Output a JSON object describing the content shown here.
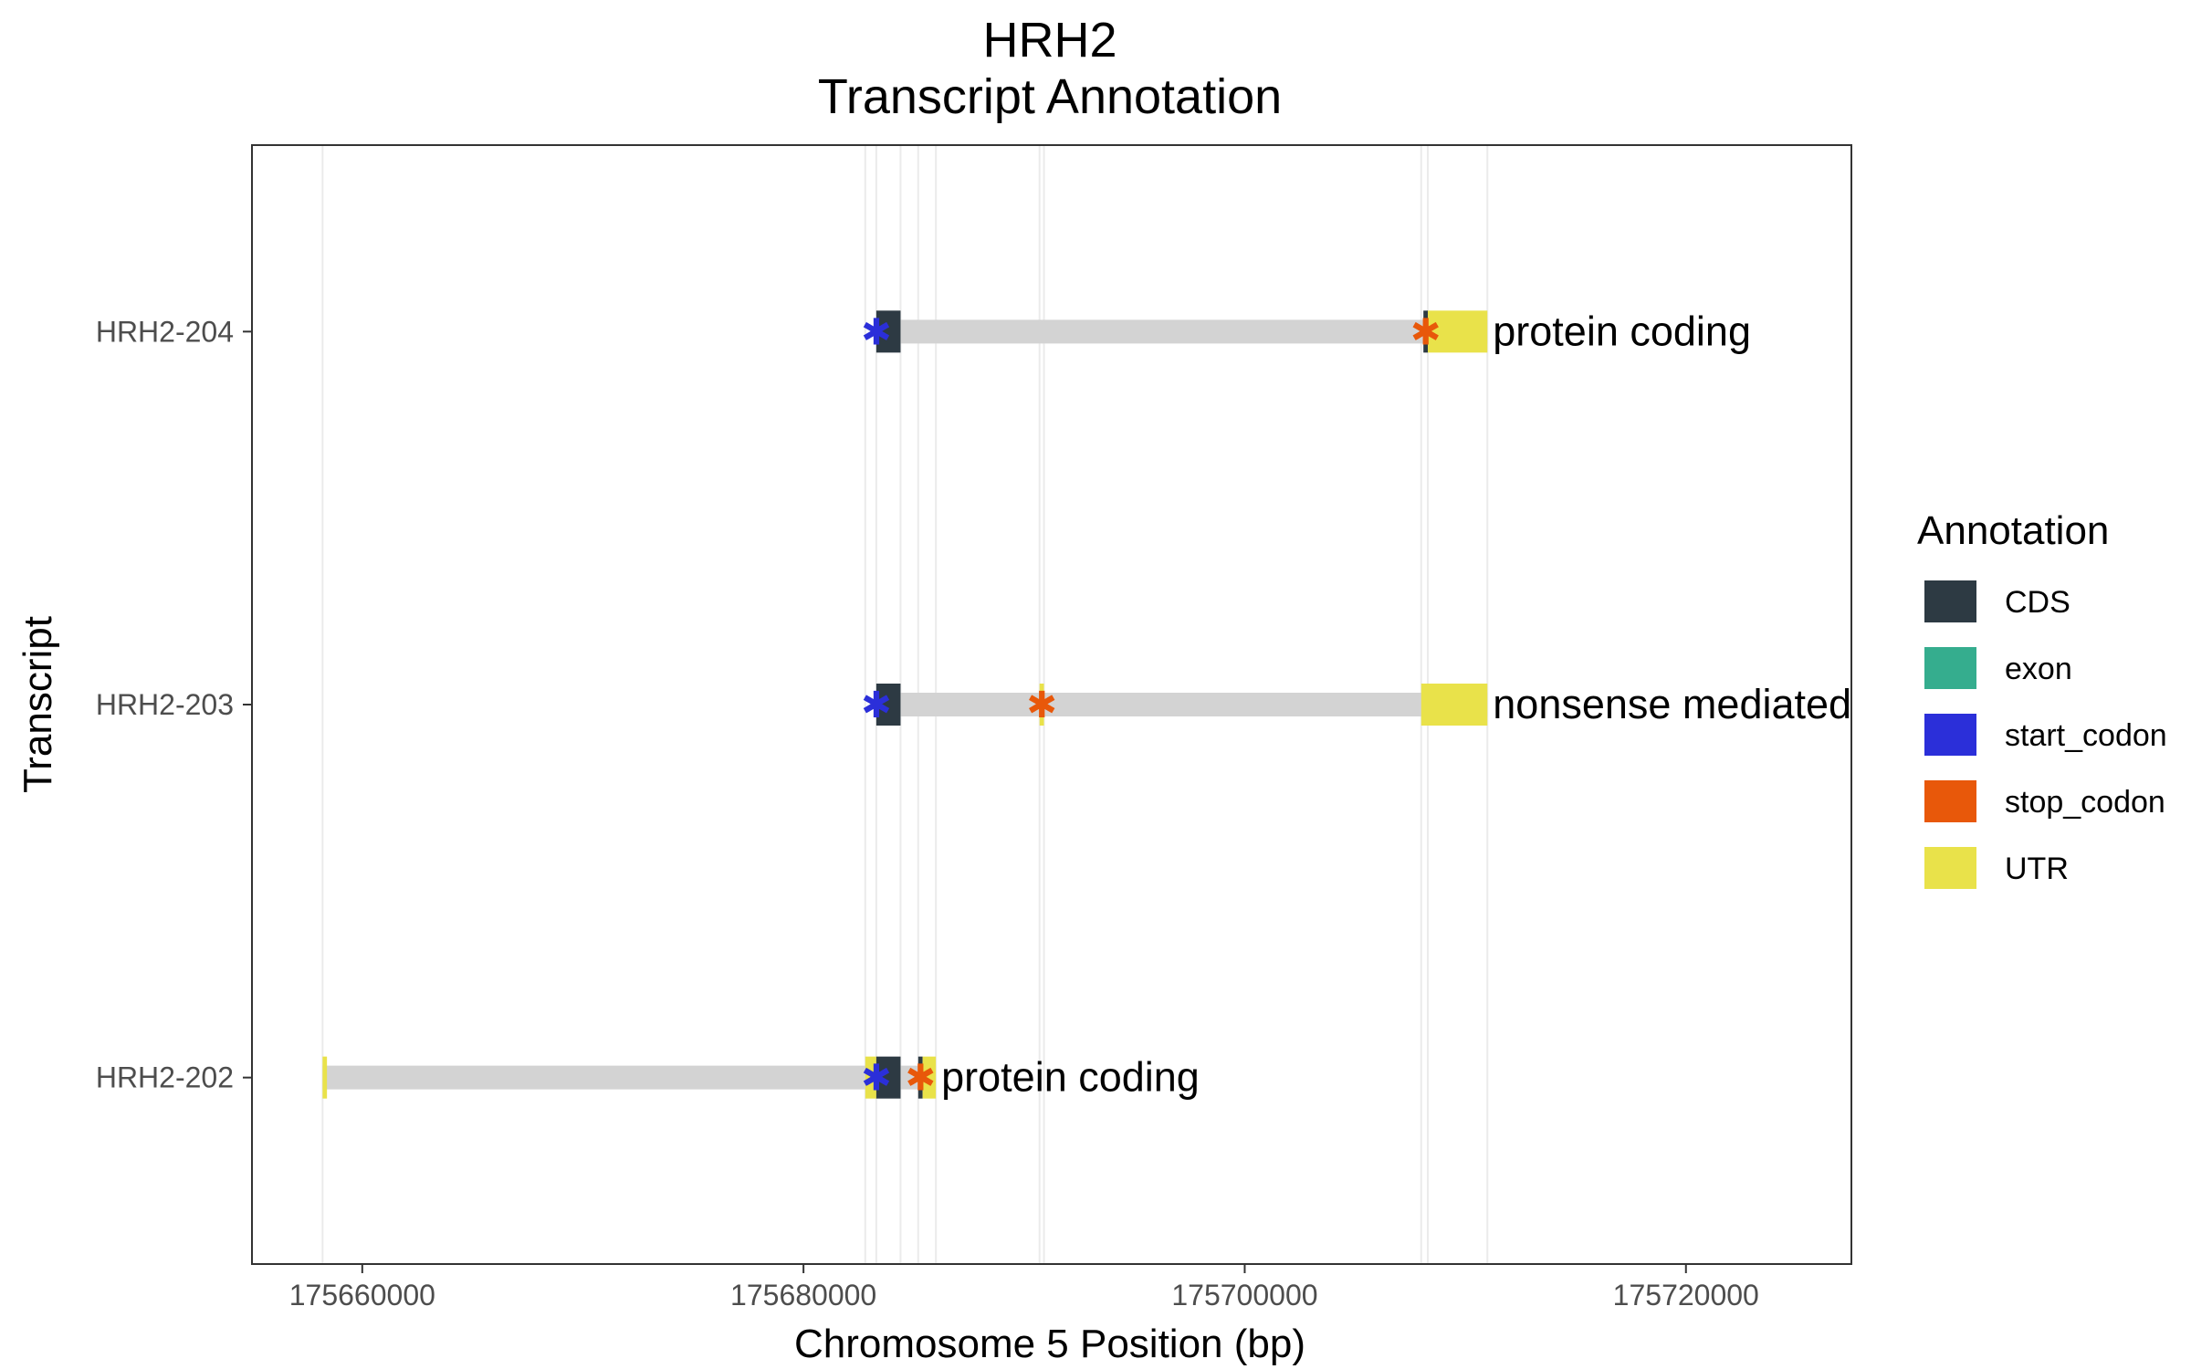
{
  "chart_data": {
    "type": "gene-track",
    "title": "HRH2",
    "subtitle": "Transcript Annotation",
    "xlabel": "Chromosome 5 Position (bp)",
    "ylabel": "Transcript",
    "xlim": [
      175655000,
      175727500
    ],
    "x_ticks": [
      175660000,
      175680000,
      175700000,
      175720000
    ],
    "x_tick_labels": [
      "175660000",
      "175680000",
      "175700000",
      "175720000"
    ],
    "grid": true,
    "legend": {
      "title": "Annotation",
      "placement": "right",
      "entries": [
        {
          "label": "CDS",
          "color": "#2d3a43"
        },
        {
          "label": "exon",
          "color": "#35ad8e"
        },
        {
          "label": "start_codon",
          "color": "#2b2fd9"
        },
        {
          "label": "stop_codon",
          "color": "#e8580a"
        },
        {
          "label": "UTR",
          "color": "#e9e24a"
        }
      ]
    },
    "intron_color": "#d3d3d3",
    "transcripts": [
      {
        "name": "HRH2-204",
        "biotype": "protein coding",
        "start": 175683300,
        "end": 175711000,
        "features": [
          {
            "type": "CDS",
            "start": 175683300,
            "end": 175684400
          },
          {
            "type": "CDS",
            "start": 175708100,
            "end": 175708300
          },
          {
            "type": "UTR",
            "start": 175708300,
            "end": 175711000
          }
        ],
        "start_codon": 175683300,
        "stop_codon": 175708200
      },
      {
        "name": "HRH2-203",
        "biotype": "nonsense mediated decay",
        "start": 175683300,
        "end": 175711000,
        "features": [
          {
            "type": "CDS",
            "start": 175683300,
            "end": 175684400
          },
          {
            "type": "UTR",
            "start": 175690700,
            "end": 175690900
          },
          {
            "type": "UTR",
            "start": 175708000,
            "end": 175711000
          }
        ],
        "start_codon": 175683300,
        "stop_codon": 175690800
      },
      {
        "name": "HRH2-202",
        "biotype": "protein coding",
        "start": 175658200,
        "end": 175686000,
        "features": [
          {
            "type": "UTR",
            "start": 175658200,
            "end": 175658400
          },
          {
            "type": "UTR",
            "start": 175682800,
            "end": 175683300
          },
          {
            "type": "CDS",
            "start": 175683300,
            "end": 175684400
          },
          {
            "type": "CDS",
            "start": 175685200,
            "end": 175685400
          },
          {
            "type": "UTR",
            "start": 175685400,
            "end": 175686000
          }
        ],
        "start_codon": 175683300,
        "stop_codon": 175685300
      }
    ],
    "exon_boundaries": [
      175658200,
      175682800,
      175683300,
      175684400,
      175685200,
      175686000,
      175690700,
      175690900,
      175708000,
      175708300,
      175711000
    ]
  }
}
